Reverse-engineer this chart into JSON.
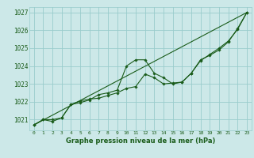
{
  "title": "Graphe pression niveau de la mer (hPa)",
  "bg_color": "#cce8e8",
  "grid_color": "#99cccc",
  "line_color": "#1a5c1a",
  "marker_color": "#1a5c1a",
  "xlim": [
    -0.5,
    23.5
  ],
  "ylim": [
    1020.4,
    1027.3
  ],
  "yticks": [
    1021,
    1022,
    1023,
    1024,
    1025,
    1026,
    1027
  ],
  "xticks": [
    0,
    1,
    2,
    3,
    4,
    5,
    6,
    7,
    8,
    9,
    10,
    11,
    12,
    13,
    14,
    15,
    16,
    17,
    18,
    19,
    20,
    21,
    22,
    23
  ],
  "series1": [
    1020.7,
    1021.0,
    1020.9,
    1021.1,
    1021.85,
    1021.95,
    1022.1,
    1022.4,
    1022.5,
    1022.65,
    1024.0,
    1024.35,
    1024.35,
    1023.6,
    1023.35,
    1023.0,
    1023.1,
    1023.6,
    1024.35,
    1024.6,
    1024.9,
    1025.35,
    1026.1,
    1027.0
  ],
  "series2": [
    1020.7,
    1021.0,
    1021.0,
    1021.1,
    1021.85,
    1022.05,
    1022.15,
    1022.2,
    1022.35,
    1022.5,
    1022.75,
    1022.85,
    1023.55,
    1023.35,
    1023.0,
    1023.05,
    1023.1,
    1023.6,
    1024.3,
    1024.65,
    1025.0,
    1025.4,
    1026.05,
    1027.0
  ],
  "straight_line_x": [
    0,
    23
  ],
  "straight_line_y": [
    1020.7,
    1027.0
  ],
  "ylabel_fontsize": 5.5,
  "xlabel_fontsize": 4.5,
  "title_fontsize": 6.0,
  "line_width": 0.8,
  "marker_size": 1.8
}
